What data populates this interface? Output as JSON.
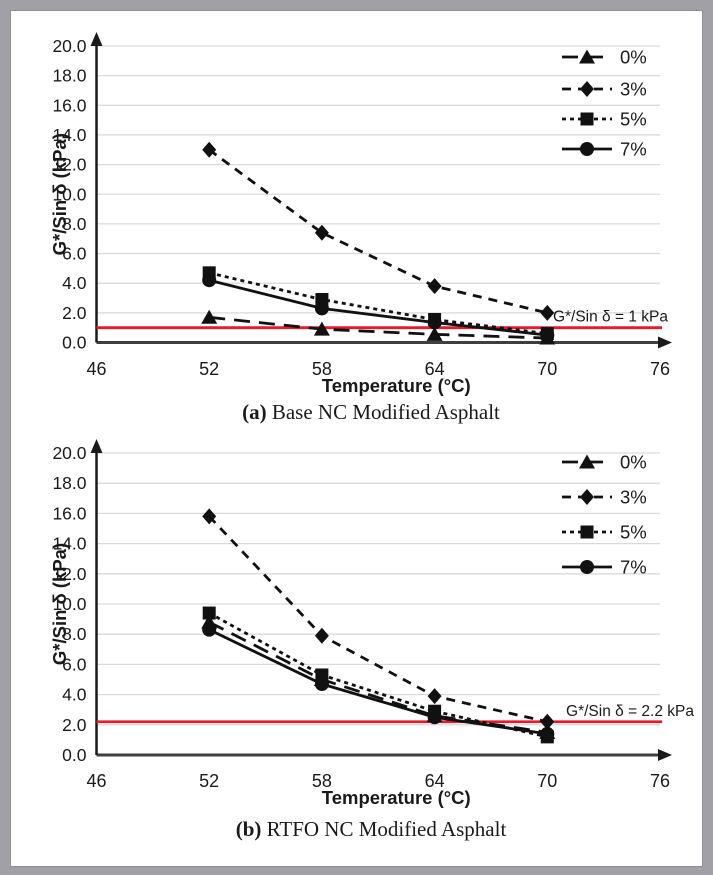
{
  "page": {
    "background": "#ffffff",
    "frame_color": "#a0a0a6",
    "series_color": "#111111",
    "grid_color": "#d9d9d9",
    "ref_line_color": "#e8192c"
  },
  "chart_data": [
    {
      "type": "line",
      "title": "(a) Base NC Modified Asphalt",
      "caption_prefix": "(a)",
      "caption_rest": " Base NC Modified Asphalt",
      "xlabel": "Temperature (°C)",
      "ylabel": "G*/Sin δ (kPa)",
      "xlim": [
        46,
        76
      ],
      "ylim": [
        0,
        20
      ],
      "x_ticks": [
        "46",
        "52",
        "58",
        "64",
        "70",
        "76"
      ],
      "y_ticks": [
        "0.0",
        "2.0",
        "4.0",
        "6.0",
        "8.0",
        "10.0",
        "12.0",
        "14.0",
        "16.0",
        "18.0",
        "20.0"
      ],
      "grid": true,
      "legend_position": "top-right",
      "x": [
        52,
        58,
        64,
        70
      ],
      "series": [
        {
          "name": "0%",
          "marker": "triangle",
          "dash": "long-dash",
          "values": [
            1.7,
            0.9,
            0.55,
            0.3
          ]
        },
        {
          "name": "3%",
          "marker": "diamond",
          "dash": "dash",
          "values": [
            13.0,
            7.4,
            3.8,
            2.0
          ]
        },
        {
          "name": "5%",
          "marker": "square",
          "dash": "dot",
          "values": [
            4.7,
            2.9,
            1.55,
            0.6
          ]
        },
        {
          "name": "7%",
          "marker": "circle",
          "dash": "solid",
          "values": [
            4.2,
            2.3,
            1.35,
            0.5
          ]
        }
      ],
      "ref_line": {
        "value": 1,
        "label": "G*/Sin δ = 1 kPa"
      }
    },
    {
      "type": "line",
      "title": "(b) RTFO NC Modified Asphalt",
      "caption_prefix": "(b)",
      "caption_rest": " RTFO NC Modified Asphalt",
      "xlabel": "Temperature (°C)",
      "ylabel": "G*/Sin δ (kPa)",
      "xlim": [
        46,
        76
      ],
      "ylim": [
        0,
        20
      ],
      "x_ticks": [
        "46",
        "52",
        "58",
        "64",
        "70",
        "76"
      ],
      "y_ticks": [
        "0.0",
        "2.0",
        "4.0",
        "6.0",
        "8.0",
        "10.0",
        "12.0",
        "14.0",
        "16.0",
        "18.0",
        "20.0"
      ],
      "grid": true,
      "legend_position": "top-right",
      "x": [
        52,
        58,
        64,
        70
      ],
      "series": [
        {
          "name": "0%",
          "marker": "triangle",
          "dash": "long-dash",
          "values": [
            8.8,
            5.0,
            2.6,
            1.5
          ]
        },
        {
          "name": "3%",
          "marker": "diamond",
          "dash": "dash",
          "values": [
            15.8,
            7.9,
            3.9,
            2.2
          ]
        },
        {
          "name": "5%",
          "marker": "square",
          "dash": "dot",
          "values": [
            9.4,
            5.3,
            2.9,
            1.2
          ]
        },
        {
          "name": "7%",
          "marker": "circle",
          "dash": "solid",
          "values": [
            8.3,
            4.7,
            2.5,
            1.4
          ]
        }
      ],
      "ref_line": {
        "value": 2.2,
        "label": "G*/Sin δ = 2.2 kPa"
      }
    }
  ]
}
